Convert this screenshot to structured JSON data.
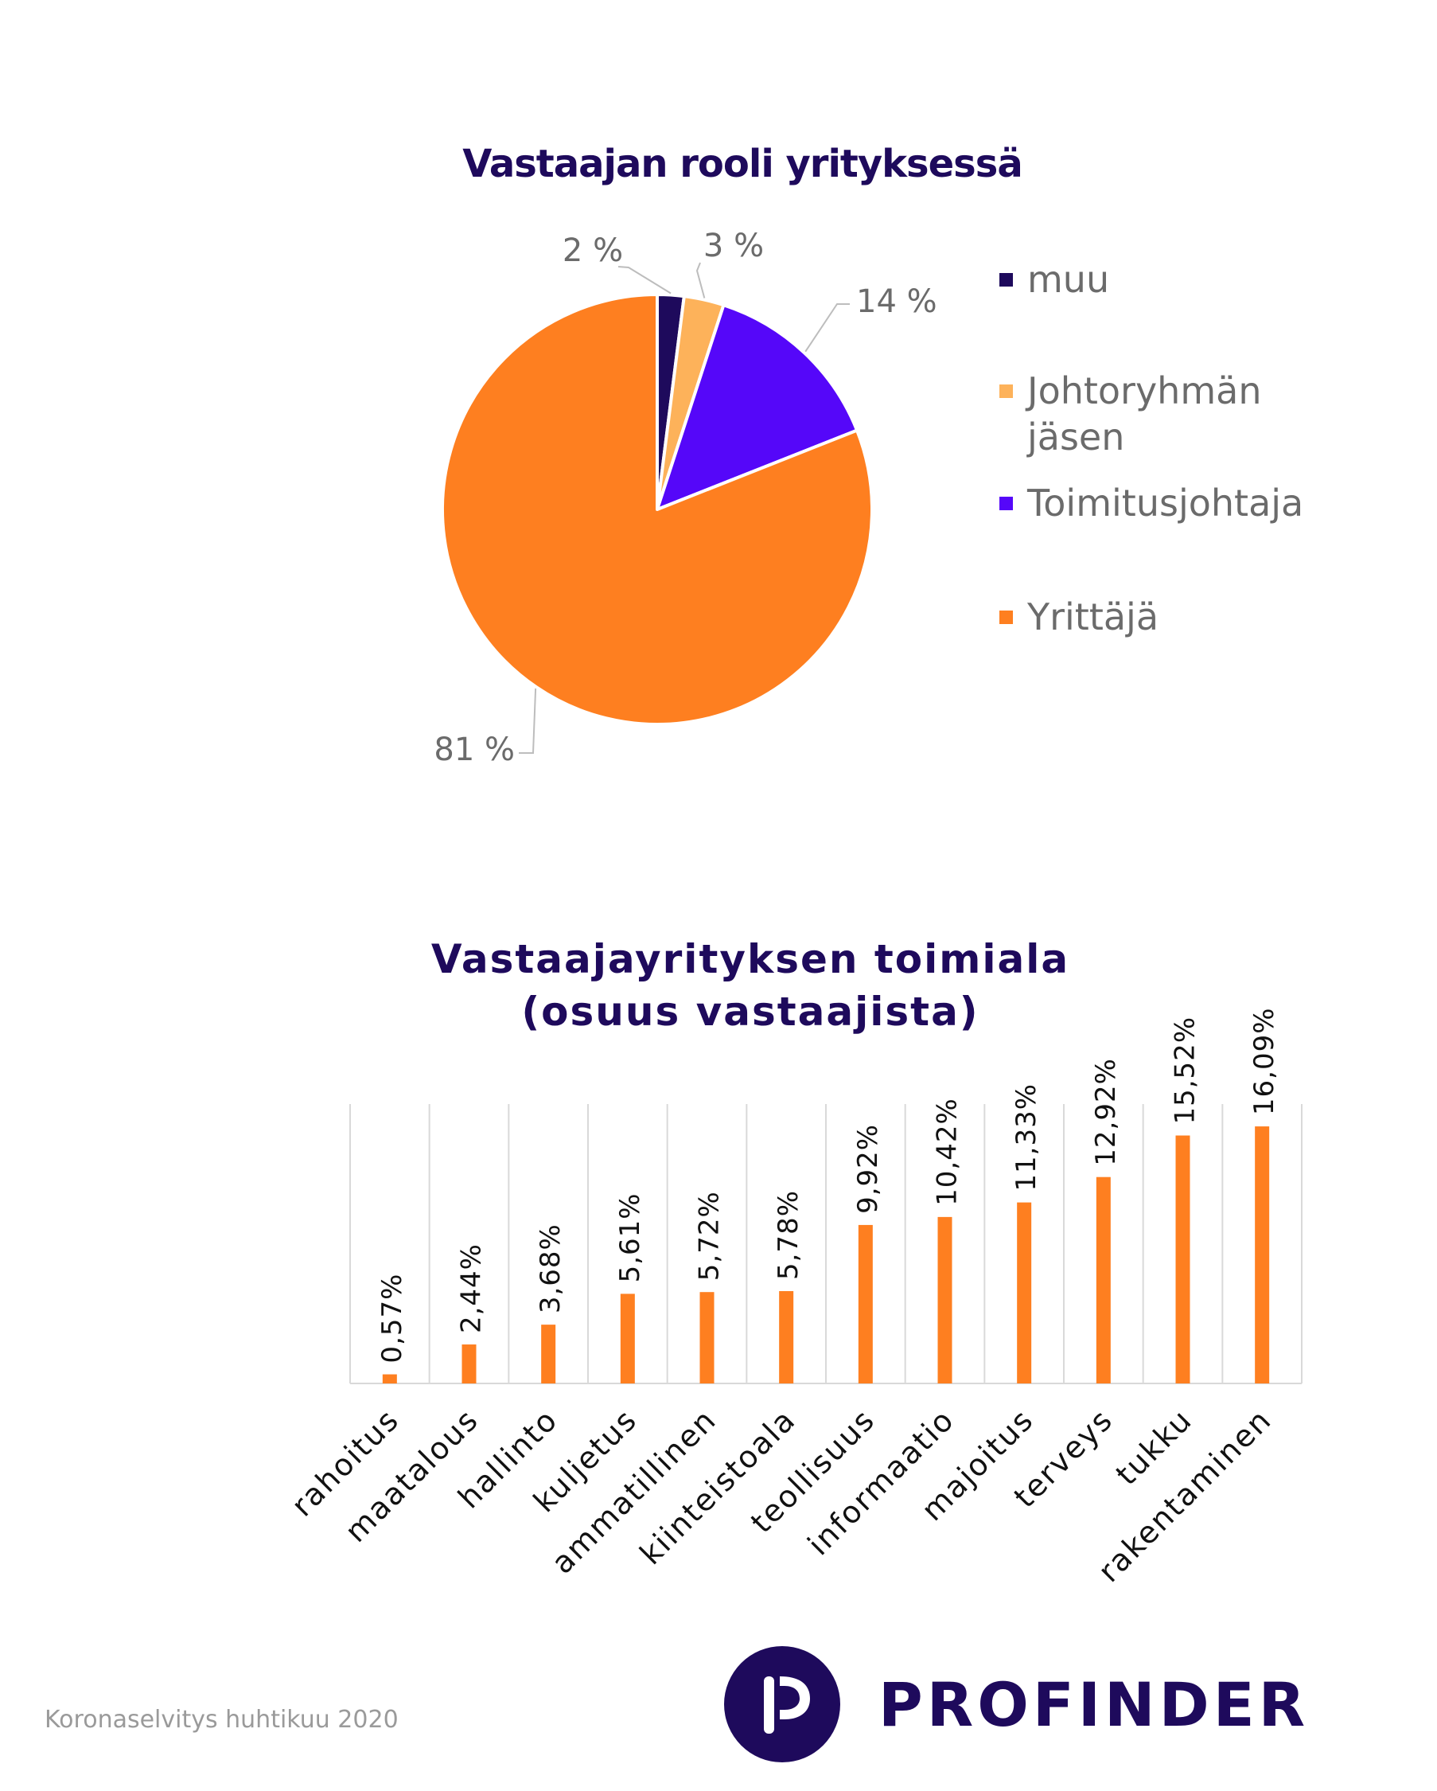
{
  "pie_title": "Vastaajan rooli yrityksessä",
  "bar_title_line1": "Vastaajayrityksen toimiala",
  "bar_title_line2": "(osuus vastaajista)",
  "footer_note": "Koronaselvitys huhtikuu 2020",
  "brand_name": "PROFINDER",
  "colors": {
    "title": "#1e0a5c",
    "orange": "#fe7f20",
    "light_orange": "#fdb25a",
    "purple": "#5507f9",
    "dark_purple": "#1e0a5c",
    "gray_text": "#6b6b6b",
    "grid": "#d9d9d9"
  },
  "chart_data": [
    {
      "type": "pie",
      "title": "Vastaajan rooli yrityksessä",
      "legend_position": "right",
      "slices": [
        {
          "label": "muu",
          "value": 2,
          "value_label": "2 %",
          "color": "#1e0a5c"
        },
        {
          "label": "Johtoryhmän jäsen",
          "value": 3,
          "value_label": "3 %",
          "color": "#fdb25a"
        },
        {
          "label": "Toimitusjohtaja",
          "value": 14,
          "value_label": "14 %",
          "color": "#5507f9"
        },
        {
          "label": "Yrittäjä",
          "value": 81,
          "value_label": "81 %",
          "color": "#fe7f20"
        }
      ]
    },
    {
      "type": "bar",
      "title": "Vastaajayrityksen toimiala (osuus vastaajista)",
      "categories": [
        "rahoitus",
        "maatalous",
        "hallinto",
        "kuljetus",
        "ammatillinen",
        "kiinteistoala",
        "teollisuus",
        "informaatio",
        "majoitus",
        "terveys",
        "tukku",
        "rakentaminen"
      ],
      "values": [
        0.57,
        2.44,
        3.68,
        5.61,
        5.72,
        5.78,
        9.92,
        10.42,
        11.33,
        12.92,
        15.52,
        16.09
      ],
      "value_labels": [
        "0,57%",
        "2,44%",
        "3,68%",
        "5,61%",
        "5,72%",
        "5,78%",
        "9,92%",
        "10,42%",
        "11,33%",
        "12,92%",
        "15,52%",
        "16,09%"
      ],
      "ylim": [
        0,
        18
      ],
      "grid": "vertical",
      "color": "#fe7f20"
    }
  ]
}
